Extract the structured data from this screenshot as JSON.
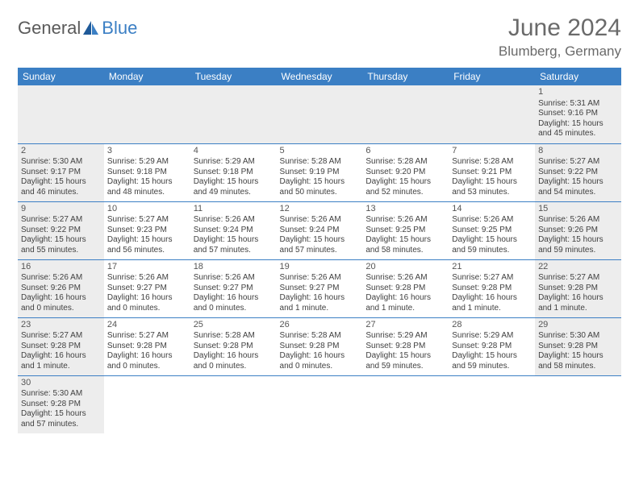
{
  "brand": {
    "word1": "General",
    "word2": "Blue"
  },
  "title": "June 2024",
  "location": "Blumberg, Germany",
  "colors": {
    "header_bg": "#3b7fc4",
    "header_text": "#ffffff",
    "weekend_bg": "#ededed",
    "text": "#404040"
  },
  "day_headers": [
    "Sunday",
    "Monday",
    "Tuesday",
    "Wednesday",
    "Thursday",
    "Friday",
    "Saturday"
  ],
  "weeks": [
    [
      null,
      null,
      null,
      null,
      null,
      null,
      {
        "n": "1",
        "sr": "Sunrise: 5:31 AM",
        "ss": "Sunset: 9:16 PM",
        "dl": "Daylight: 15 hours and 45 minutes."
      }
    ],
    [
      {
        "n": "2",
        "sr": "Sunrise: 5:30 AM",
        "ss": "Sunset: 9:17 PM",
        "dl": "Daylight: 15 hours and 46 minutes."
      },
      {
        "n": "3",
        "sr": "Sunrise: 5:29 AM",
        "ss": "Sunset: 9:18 PM",
        "dl": "Daylight: 15 hours and 48 minutes."
      },
      {
        "n": "4",
        "sr": "Sunrise: 5:29 AM",
        "ss": "Sunset: 9:18 PM",
        "dl": "Daylight: 15 hours and 49 minutes."
      },
      {
        "n": "5",
        "sr": "Sunrise: 5:28 AM",
        "ss": "Sunset: 9:19 PM",
        "dl": "Daylight: 15 hours and 50 minutes."
      },
      {
        "n": "6",
        "sr": "Sunrise: 5:28 AM",
        "ss": "Sunset: 9:20 PM",
        "dl": "Daylight: 15 hours and 52 minutes."
      },
      {
        "n": "7",
        "sr": "Sunrise: 5:28 AM",
        "ss": "Sunset: 9:21 PM",
        "dl": "Daylight: 15 hours and 53 minutes."
      },
      {
        "n": "8",
        "sr": "Sunrise: 5:27 AM",
        "ss": "Sunset: 9:22 PM",
        "dl": "Daylight: 15 hours and 54 minutes."
      }
    ],
    [
      {
        "n": "9",
        "sr": "Sunrise: 5:27 AM",
        "ss": "Sunset: 9:22 PM",
        "dl": "Daylight: 15 hours and 55 minutes."
      },
      {
        "n": "10",
        "sr": "Sunrise: 5:27 AM",
        "ss": "Sunset: 9:23 PM",
        "dl": "Daylight: 15 hours and 56 minutes."
      },
      {
        "n": "11",
        "sr": "Sunrise: 5:26 AM",
        "ss": "Sunset: 9:24 PM",
        "dl": "Daylight: 15 hours and 57 minutes."
      },
      {
        "n": "12",
        "sr": "Sunrise: 5:26 AM",
        "ss": "Sunset: 9:24 PM",
        "dl": "Daylight: 15 hours and 57 minutes."
      },
      {
        "n": "13",
        "sr": "Sunrise: 5:26 AM",
        "ss": "Sunset: 9:25 PM",
        "dl": "Daylight: 15 hours and 58 minutes."
      },
      {
        "n": "14",
        "sr": "Sunrise: 5:26 AM",
        "ss": "Sunset: 9:25 PM",
        "dl": "Daylight: 15 hours and 59 minutes."
      },
      {
        "n": "15",
        "sr": "Sunrise: 5:26 AM",
        "ss": "Sunset: 9:26 PM",
        "dl": "Daylight: 15 hours and 59 minutes."
      }
    ],
    [
      {
        "n": "16",
        "sr": "Sunrise: 5:26 AM",
        "ss": "Sunset: 9:26 PM",
        "dl": "Daylight: 16 hours and 0 minutes."
      },
      {
        "n": "17",
        "sr": "Sunrise: 5:26 AM",
        "ss": "Sunset: 9:27 PM",
        "dl": "Daylight: 16 hours and 0 minutes."
      },
      {
        "n": "18",
        "sr": "Sunrise: 5:26 AM",
        "ss": "Sunset: 9:27 PM",
        "dl": "Daylight: 16 hours and 0 minutes."
      },
      {
        "n": "19",
        "sr": "Sunrise: 5:26 AM",
        "ss": "Sunset: 9:27 PM",
        "dl": "Daylight: 16 hours and 1 minute."
      },
      {
        "n": "20",
        "sr": "Sunrise: 5:26 AM",
        "ss": "Sunset: 9:28 PM",
        "dl": "Daylight: 16 hours and 1 minute."
      },
      {
        "n": "21",
        "sr": "Sunrise: 5:27 AM",
        "ss": "Sunset: 9:28 PM",
        "dl": "Daylight: 16 hours and 1 minute."
      },
      {
        "n": "22",
        "sr": "Sunrise: 5:27 AM",
        "ss": "Sunset: 9:28 PM",
        "dl": "Daylight: 16 hours and 1 minute."
      }
    ],
    [
      {
        "n": "23",
        "sr": "Sunrise: 5:27 AM",
        "ss": "Sunset: 9:28 PM",
        "dl": "Daylight: 16 hours and 1 minute."
      },
      {
        "n": "24",
        "sr": "Sunrise: 5:27 AM",
        "ss": "Sunset: 9:28 PM",
        "dl": "Daylight: 16 hours and 0 minutes."
      },
      {
        "n": "25",
        "sr": "Sunrise: 5:28 AM",
        "ss": "Sunset: 9:28 PM",
        "dl": "Daylight: 16 hours and 0 minutes."
      },
      {
        "n": "26",
        "sr": "Sunrise: 5:28 AM",
        "ss": "Sunset: 9:28 PM",
        "dl": "Daylight: 16 hours and 0 minutes."
      },
      {
        "n": "27",
        "sr": "Sunrise: 5:29 AM",
        "ss": "Sunset: 9:28 PM",
        "dl": "Daylight: 15 hours and 59 minutes."
      },
      {
        "n": "28",
        "sr": "Sunrise: 5:29 AM",
        "ss": "Sunset: 9:28 PM",
        "dl": "Daylight: 15 hours and 59 minutes."
      },
      {
        "n": "29",
        "sr": "Sunrise: 5:30 AM",
        "ss": "Sunset: 9:28 PM",
        "dl": "Daylight: 15 hours and 58 minutes."
      }
    ],
    [
      {
        "n": "30",
        "sr": "Sunrise: 5:30 AM",
        "ss": "Sunset: 9:28 PM",
        "dl": "Daylight: 15 hours and 57 minutes."
      },
      null,
      null,
      null,
      null,
      null,
      null
    ]
  ]
}
